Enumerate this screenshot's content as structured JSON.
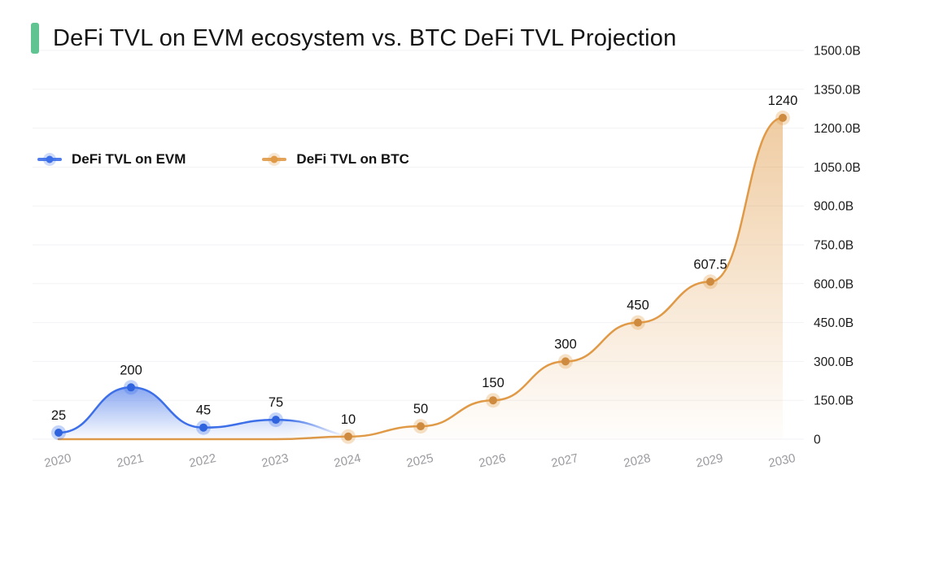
{
  "header": {
    "title": "DeFi TVL on EVM ecosystem vs. BTC DeFi TVL Projection",
    "accent_color": "#5FC492"
  },
  "legend": [
    {
      "label": "DeFi TVL on EVM",
      "color": "#3D6FE8"
    },
    {
      "label": "DeFi TVL on BTC",
      "color": "#E09A47"
    }
  ],
  "chart_data": {
    "type": "area",
    "title": "DeFi TVL on EVM ecosystem vs. BTC DeFi TVL Projection",
    "xlabel": "",
    "ylabel": "",
    "x_tick_labels": [
      "2020",
      "2021",
      "2022",
      "2023",
      "2024",
      "2025",
      "2026",
      "2027",
      "2028",
      "2029",
      "2030"
    ],
    "x_ticks": [
      2020,
      2021,
      2022,
      2023,
      2024,
      2025,
      2026,
      2027,
      2028,
      2029,
      2030
    ],
    "y_tick_labels": [
      "0",
      "150.0B",
      "300.0B",
      "450.0B",
      "600.0B",
      "750.0B",
      "900.0B",
      "1050.0B",
      "1200.0B",
      "1350.0B",
      "1500.0B"
    ],
    "ylim": [
      0,
      1500
    ],
    "y_tick_step": 150,
    "grid": "horizontal-faint",
    "legend_position": "inside-top-left",
    "y_axis_side": "right",
    "series": [
      {
        "name": "DeFi TVL on EVM",
        "color": "#3D6FE8",
        "marker_color": "#2F64DE",
        "x": [
          2020,
          2021,
          2022,
          2023
        ],
        "values": [
          25,
          200,
          45,
          75
        ],
        "point_labels": [
          "25",
          "200",
          "45",
          "75"
        ],
        "fade_out_at_x": 2024.3
      },
      {
        "name": "DeFi TVL on BTC",
        "color": "#E09A47",
        "marker_color": "#CE8B3F",
        "x": [
          2020,
          2021,
          2022,
          2023,
          2024,
          2025,
          2026,
          2027,
          2028,
          2029,
          2030
        ],
        "values": [
          0,
          0,
          0,
          0,
          10,
          50,
          150,
          300,
          450,
          607.5,
          1240
        ],
        "point_labels": [
          null,
          null,
          null,
          null,
          "10",
          "50",
          "150",
          "300",
          "450",
          "607.5",
          "1240"
        ]
      }
    ]
  }
}
